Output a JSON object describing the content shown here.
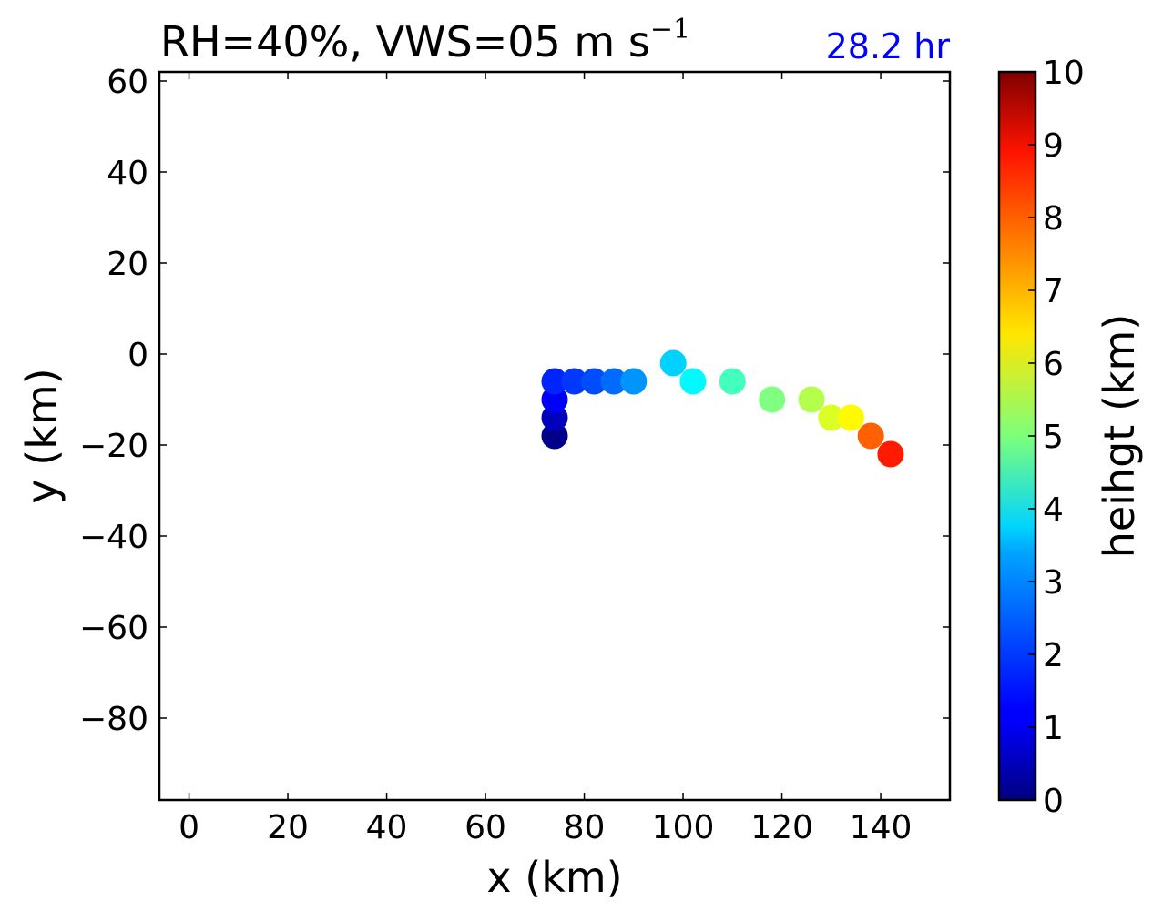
{
  "chart_data": {
    "type": "scatter",
    "title": {
      "main": "RH=40%, VWS=05 m s",
      "superscript": "−1"
    },
    "time_label": "28.2 hr",
    "time_label_color": "#0000ff",
    "xlabel": "x (km)",
    "ylabel": "y (km)",
    "xlim": [
      -6,
      154
    ],
    "ylim": [
      -98,
      62
    ],
    "xticks": [
      0,
      20,
      40,
      60,
      80,
      100,
      120,
      140
    ],
    "yticks": [
      60,
      40,
      20,
      0,
      -20,
      -40,
      -60,
      -80
    ],
    "xtick_labels": [
      "0",
      "20",
      "40",
      "60",
      "80",
      "100",
      "120",
      "140"
    ],
    "ytick_labels": [
      "60",
      "40",
      "20",
      "0",
      "−20",
      "−40",
      "−60",
      "−80"
    ],
    "grid": false,
    "series": [
      {
        "color_by": "height_km",
        "points": [
          {
            "x": 74,
            "y": -18,
            "height_km": 0.1
          },
          {
            "x": 74,
            "y": -14,
            "height_km": 0.6
          },
          {
            "x": 74,
            "y": -10,
            "height_km": 1.2
          },
          {
            "x": 74,
            "y": -6,
            "height_km": 1.6
          },
          {
            "x": 78,
            "y": -6,
            "height_km": 1.8
          },
          {
            "x": 82,
            "y": -6,
            "height_km": 2.0
          },
          {
            "x": 86,
            "y": -6,
            "height_km": 2.3
          },
          {
            "x": 90,
            "y": -6,
            "height_km": 2.7
          },
          {
            "x": 98,
            "y": -2,
            "height_km": 3.3
          },
          {
            "x": 102,
            "y": -6,
            "height_km": 3.7
          },
          {
            "x": 110,
            "y": -6,
            "height_km": 4.4
          },
          {
            "x": 118,
            "y": -10,
            "height_km": 5.0
          },
          {
            "x": 126,
            "y": -10,
            "height_km": 5.5
          },
          {
            "x": 130,
            "y": -14,
            "height_km": 5.9
          },
          {
            "x": 134,
            "y": -14,
            "height_km": 6.3
          },
          {
            "x": 138,
            "y": -18,
            "height_km": 7.8
          },
          {
            "x": 142,
            "y": -22,
            "height_km": 8.5
          }
        ]
      }
    ],
    "colorbar": {
      "label": "heihgt (km)",
      "min": 0,
      "max": 10,
      "ticks": [
        "0",
        "1",
        "2",
        "3",
        "4",
        "5",
        "6",
        "7",
        "8",
        "9",
        "10"
      ],
      "colormap": "jet"
    }
  }
}
